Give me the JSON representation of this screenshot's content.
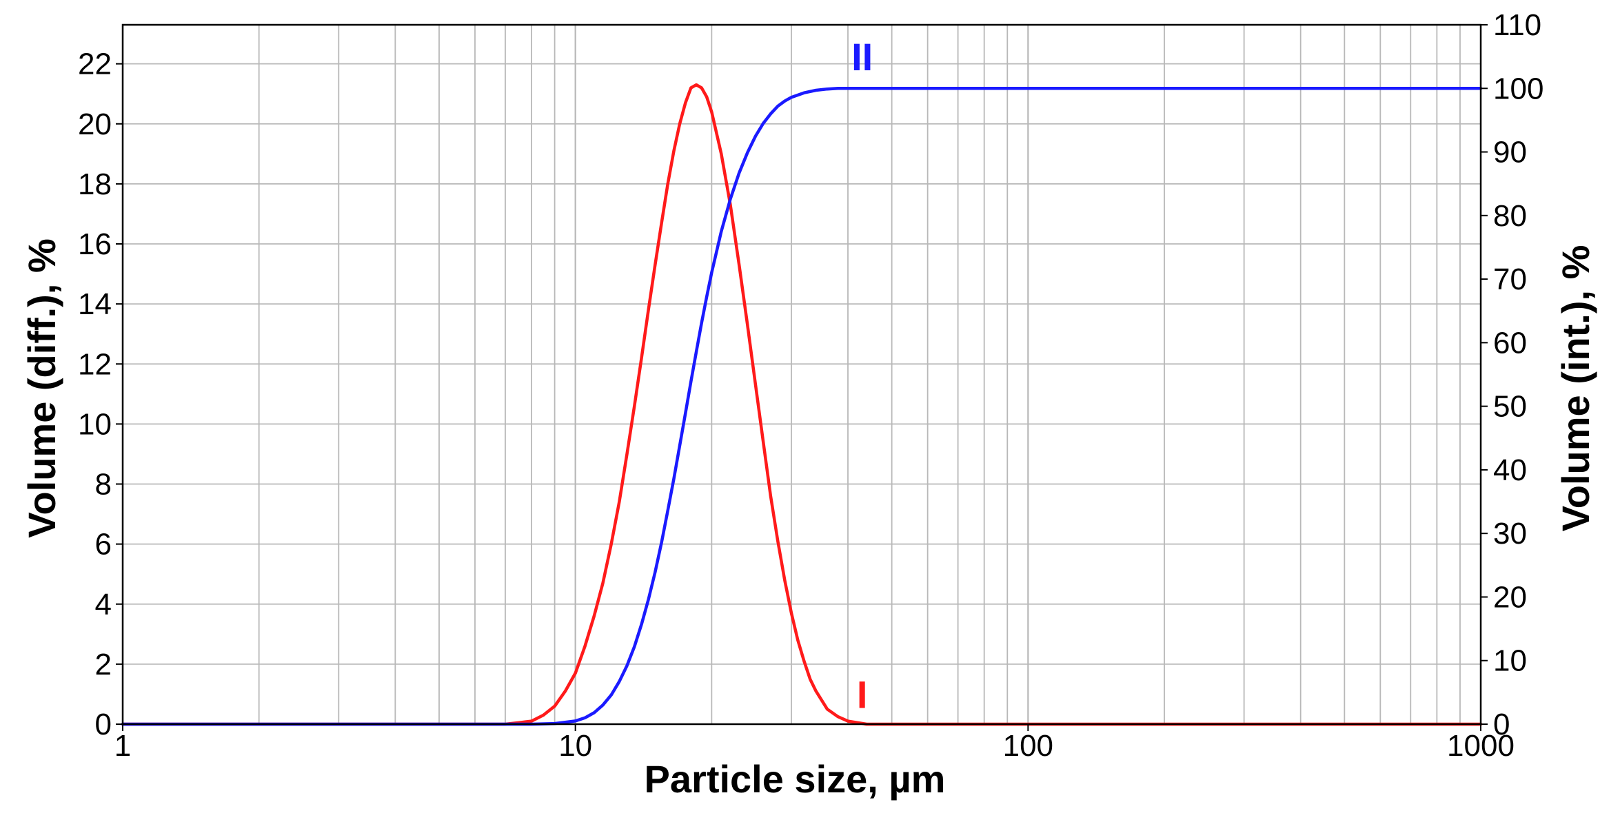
{
  "chart_data": {
    "type": "line",
    "xscale": "log",
    "xlim": [
      1,
      1000
    ],
    "xticks": [
      1,
      10,
      100,
      1000
    ],
    "xtick_labels": [
      "1",
      "10",
      "100",
      "1000"
    ],
    "xlabel": "Particle size, µm",
    "ylabel_left": "Volume (diff.), %",
    "ylabel_right": "Volume (int.), %",
    "ylim_left": [
      0,
      23.3
    ],
    "ylim_right": [
      0,
      110
    ],
    "yticks_left": [
      0,
      2,
      4,
      6,
      8,
      10,
      12,
      14,
      16,
      18,
      20,
      22
    ],
    "ytick_labels_left": [
      "0",
      "2",
      "4",
      "6",
      "8",
      "10",
      "12",
      "14",
      "16",
      "18",
      "20",
      "22"
    ],
    "yticks_right": [
      0,
      10,
      20,
      30,
      40,
      50,
      60,
      70,
      80,
      90,
      100,
      110
    ],
    "ytick_labels_right": [
      "0",
      "10",
      "20",
      "30",
      "40",
      "50",
      "60",
      "70",
      "80",
      "90",
      "100",
      "110"
    ],
    "grid": true,
    "series": [
      {
        "name": "I",
        "axis": "left",
        "color": "#ff1a1a",
        "x": [
          1,
          5,
          7.0,
          7.5,
          8.0,
          8.5,
          9.0,
          9.5,
          10.0,
          10.5,
          11.0,
          11.5,
          12.0,
          12.5,
          13.0,
          13.5,
          14.0,
          14.5,
          15.0,
          15.5,
          16.0,
          16.5,
          17.0,
          17.5,
          18.0,
          18.5,
          19.0,
          19.5,
          20.0,
          21.0,
          22.0,
          23.0,
          24.0,
          25.0,
          26.0,
          27.0,
          28.0,
          29.0,
          30.0,
          31.0,
          32.0,
          33.0,
          34.0,
          35.0,
          36.0,
          38.0,
          40.0,
          42.0,
          44.0,
          46.0,
          50.0,
          100,
          1000
        ],
        "y": [
          0,
          0,
          0.0,
          0.05,
          0.1,
          0.3,
          0.6,
          1.1,
          1.7,
          2.6,
          3.6,
          4.7,
          6.0,
          7.4,
          9.0,
          10.6,
          12.2,
          13.8,
          15.3,
          16.7,
          18.0,
          19.1,
          20.0,
          20.7,
          21.2,
          21.3,
          21.2,
          20.9,
          20.4,
          19.0,
          17.3,
          15.3,
          13.3,
          11.3,
          9.4,
          7.6,
          6.1,
          4.8,
          3.7,
          2.8,
          2.1,
          1.5,
          1.1,
          0.8,
          0.5,
          0.25,
          0.1,
          0.05,
          0.0,
          0.0,
          0,
          0,
          0
        ]
      },
      {
        "name": "II",
        "axis": "right",
        "color": "#1a1aff",
        "x": [
          1,
          5,
          8.0,
          9.0,
          10.0,
          10.5,
          11.0,
          11.5,
          12.0,
          12.5,
          13.0,
          13.5,
          14.0,
          14.5,
          15.0,
          15.5,
          16.0,
          16.5,
          17.0,
          17.5,
          18.0,
          18.5,
          19.0,
          19.5,
          20.0,
          21.0,
          22.0,
          23.0,
          24.0,
          25.0,
          26.0,
          27.0,
          28.0,
          29.0,
          30.0,
          32.0,
          34.0,
          36.0,
          38.0,
          40.0,
          42.0,
          45.0,
          50.0,
          100,
          1000
        ],
        "y": [
          0,
          0,
          0.0,
          0.1,
          0.5,
          1.0,
          1.8,
          3.0,
          4.6,
          6.7,
          9.2,
          12.2,
          15.7,
          19.6,
          23.9,
          28.6,
          33.6,
          38.6,
          43.8,
          48.9,
          53.9,
          58.6,
          63.1,
          67.2,
          71.0,
          77.5,
          82.6,
          86.7,
          89.9,
          92.5,
          94.5,
          96.0,
          97.2,
          98.0,
          98.6,
          99.3,
          99.7,
          99.9,
          100.0,
          100.0,
          100.0,
          100.0,
          100.0,
          100.0,
          100.0
        ]
      }
    ],
    "annotations": [
      {
        "text": "II",
        "series": "II",
        "x": 43,
        "y_right": 105,
        "color": "#1a1aff"
      },
      {
        "text": "I",
        "series": "I",
        "x": 43,
        "y_left": 1.0,
        "color": "#ff1a1a"
      }
    ]
  }
}
